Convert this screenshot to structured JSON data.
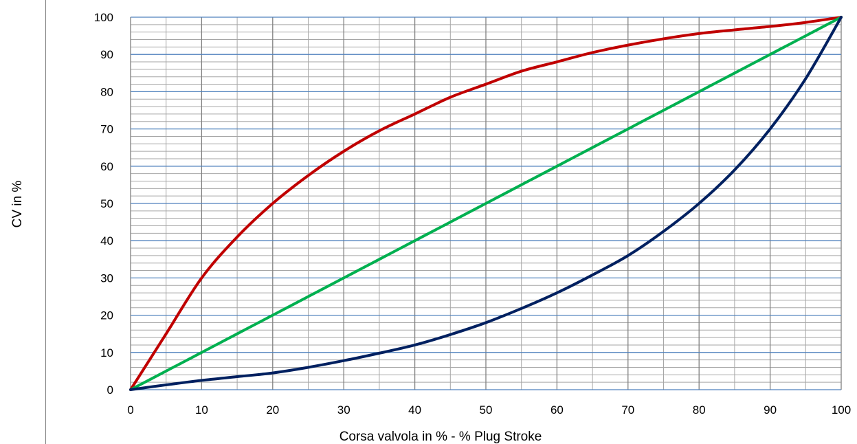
{
  "chart_data": {
    "type": "line",
    "title": "",
    "xlabel": "Corsa valvola in % - % Plug Stroke",
    "ylabel": "CV in %",
    "xlim": [
      0,
      100
    ],
    "ylim": [
      0,
      100
    ],
    "x_ticks": [
      "0",
      "10",
      "20",
      "30",
      "40",
      "50",
      "60",
      "70",
      "80",
      "90",
      "100"
    ],
    "y_ticks": [
      "0",
      "10",
      "20",
      "30",
      "40",
      "50",
      "60",
      "70",
      "80",
      "90",
      "100"
    ],
    "grid": true,
    "legend": "none",
    "x": [
      0,
      5,
      10,
      15,
      20,
      25,
      30,
      35,
      40,
      45,
      50,
      55,
      60,
      65,
      70,
      75,
      80,
      85,
      90,
      95,
      100
    ],
    "series": [
      {
        "color": "#c00000",
        "values": [
          0,
          15,
          30,
          41,
          50,
          57.5,
          64,
          69.5,
          74,
          78.5,
          82,
          85.5,
          88,
          90.5,
          92.5,
          94.2,
          95.6,
          96.6,
          97.5,
          98.6,
          100
        ]
      },
      {
        "color": "#00b050",
        "values": [
          0,
          5,
          10,
          15,
          20,
          25,
          30,
          35,
          40,
          45,
          50,
          55,
          60,
          65,
          70,
          75,
          80,
          85,
          90,
          95,
          100
        ]
      },
      {
        "color": "#002060",
        "values": [
          0,
          1.3,
          2.5,
          3.5,
          4.5,
          6,
          7.8,
          9.8,
          12,
          14.8,
          18,
          21.8,
          26,
          30.8,
          36,
          42.5,
          50,
          59,
          70,
          83.5,
          100
        ]
      }
    ],
    "colors": {
      "major_grid": "#4f81bd",
      "minor_grid": "#a6a6a6",
      "vertical_grid_major": "#808080"
    }
  }
}
